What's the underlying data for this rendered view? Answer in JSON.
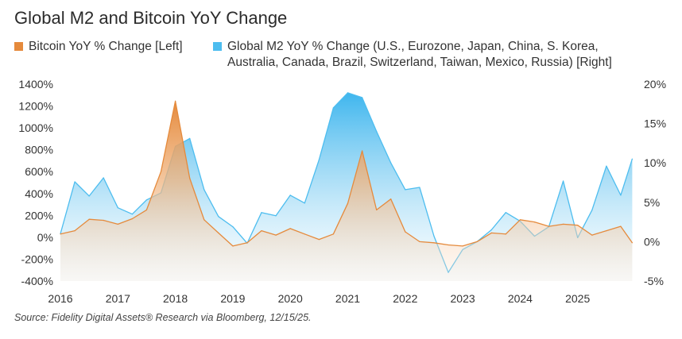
{
  "title": "Global M2 and Bitcoin YoY Change",
  "legend": {
    "btc": {
      "label": "Bitcoin YoY % Change [Left]",
      "color": "#E58A3C"
    },
    "m2": {
      "label_line1": "Global M2 YoY % Change (U.S., Eurozone, Japan, China, S. Korea,",
      "label_line2": "Australia, Canada, Brazil, Switzerland, Taiwan, Mexico, Russia) [Right]",
      "color": "#4DBDEF"
    }
  },
  "source": "Source: Fidelity Digital Assets® Research via Bloomberg, 12/15/25.",
  "chart_data": {
    "type": "area",
    "title": "Global M2 and Bitcoin YoY Change",
    "xlim": [
      2016,
      2026
    ],
    "x_ticks": [
      "2016",
      "2017",
      "2018",
      "2019",
      "2020",
      "2021",
      "2022",
      "2023",
      "2024",
      "2025"
    ],
    "left_axis": {
      "ylim": [
        -400,
        1400
      ],
      "ticks": [
        "1400%",
        "1200%",
        "1000%",
        "800%",
        "600%",
        "400%",
        "200%",
        "0%",
        "-200%",
        "-400%"
      ]
    },
    "right_axis": {
      "ylim": [
        -5,
        20
      ],
      "ticks": [
        "20%",
        "15%",
        "10%",
        "5%",
        "0%",
        "-5%"
      ]
    },
    "grid": false,
    "series": [
      {
        "name": "Bitcoin YoY % Change [Left]",
        "axis": "left",
        "color": "#E58A3C",
        "x": [
          2016.0,
          2016.25,
          2016.5,
          2016.75,
          2017.0,
          2017.25,
          2017.5,
          2017.75,
          2018.0,
          2018.25,
          2018.5,
          2018.75,
          2019.0,
          2019.25,
          2019.5,
          2019.75,
          2020.0,
          2020.25,
          2020.5,
          2020.75,
          2021.0,
          2021.25,
          2021.5,
          2021.75,
          2022.0,
          2022.25,
          2022.5,
          2022.75,
          2023.0,
          2023.25,
          2023.5,
          2023.75,
          2024.0,
          2024.25,
          2024.5,
          2024.75,
          2025.0,
          2025.25,
          2025.5,
          2025.75,
          2025.95
        ],
        "values": [
          30,
          60,
          165,
          155,
          120,
          170,
          250,
          600,
          1245,
          540,
          160,
          40,
          -80,
          -50,
          60,
          20,
          80,
          30,
          -20,
          30,
          310,
          790,
          250,
          350,
          50,
          -40,
          -50,
          -70,
          -80,
          -40,
          40,
          30,
          160,
          140,
          100,
          120,
          110,
          20,
          60,
          100,
          -50
        ]
      },
      {
        "name": "Global M2 YoY % Change (U.S., Eurozone, Japan, China, S. Korea, Australia, Canada, Brazil, Switzerland, Taiwan, Mexico, Russia) [Right]",
        "axis": "right",
        "color": "#4DBDEF",
        "x": [
          2016.0,
          2016.25,
          2016.5,
          2016.75,
          2017.0,
          2017.25,
          2017.5,
          2017.75,
          2018.0,
          2018.25,
          2018.5,
          2018.75,
          2019.0,
          2019.25,
          2019.5,
          2019.75,
          2020.0,
          2020.25,
          2020.5,
          2020.75,
          2021.0,
          2021.25,
          2021.5,
          2021.75,
          2022.0,
          2022.25,
          2022.5,
          2022.75,
          2023.0,
          2023.25,
          2023.5,
          2023.75,
          2024.0,
          2024.25,
          2024.5,
          2024.75,
          2025.0,
          2025.25,
          2025.5,
          2025.75,
          2025.95
        ],
        "values": [
          1.0,
          7.6,
          5.8,
          8.1,
          4.3,
          3.5,
          5.3,
          6.2,
          12.1,
          13.1,
          6.6,
          3.2,
          1.9,
          -0.2,
          3.7,
          3.3,
          5.9,
          4.9,
          10.4,
          17.0,
          18.9,
          18.3,
          14.0,
          10.0,
          6.6,
          6.9,
          0.7,
          -3.9,
          -1.0,
          0.0,
          1.5,
          3.7,
          2.6,
          0.7,
          1.9,
          7.7,
          0.5,
          4.0,
          9.6,
          5.9,
          10.5
        ]
      }
    ]
  }
}
